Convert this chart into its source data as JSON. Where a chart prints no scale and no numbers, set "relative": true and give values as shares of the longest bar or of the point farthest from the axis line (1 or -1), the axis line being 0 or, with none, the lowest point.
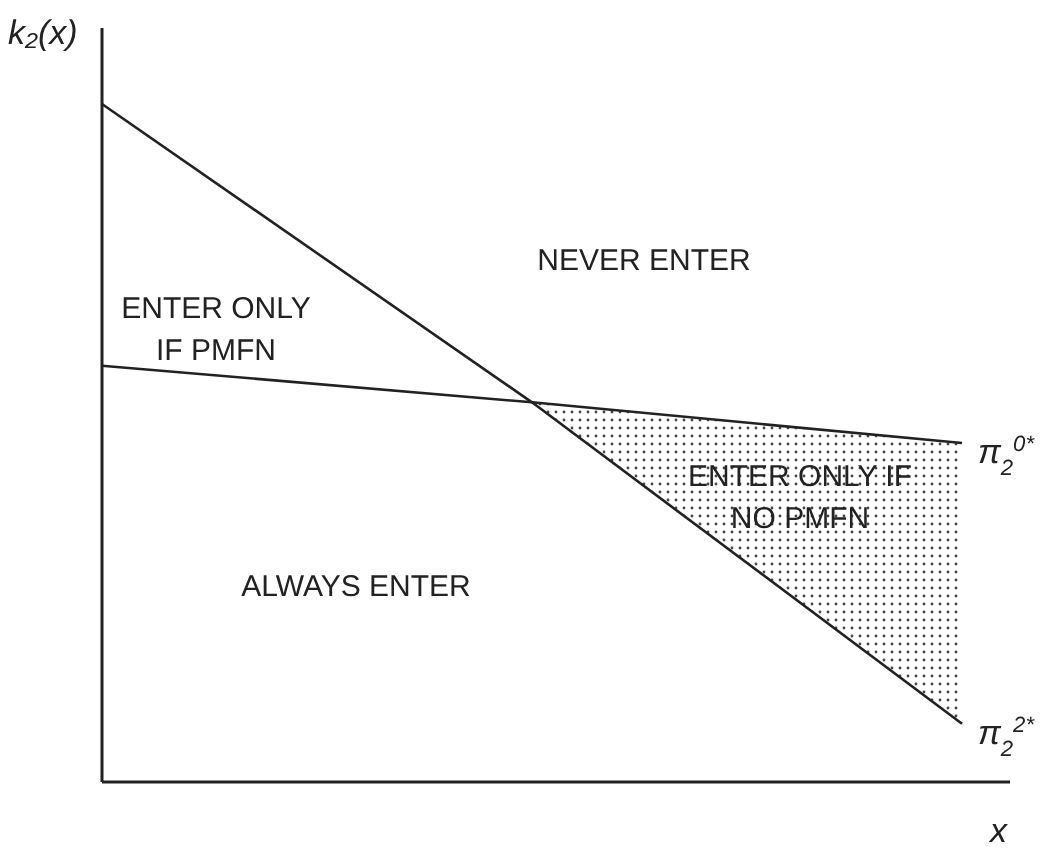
{
  "chart_data": {
    "type": "line",
    "relative": true,
    "xlabel": "x",
    "ylabel": "k₂(x)",
    "categories": [
      null,
      null,
      null
    ],
    "series": [
      {
        "name": "π$_{2}$$^{2*}$",
        "color": "#222222",
        "values": [
          1,
          0.56,
          0.086
        ]
      },
      {
        "name": "π$_{2}$$^{0*}$",
        "color": "#222222",
        "values": [
          0.614,
          0.56,
          0.5
        ],
        "lower": [
          null,
          0.56,
          0.086
        ],
        "upper": [
          null,
          0.56,
          0.5
        ]
      }
    ],
    "annotations": [
      "NEVER ENTER",
      "ENTER ONLY\nIF PMFN",
      "ALWAYS ENTER",
      "ENTER ONLY IF\nNO PMFN"
    ],
    "legend": false,
    "grid": false,
    "marker": "none",
    "line_style": "solid"
  }
}
